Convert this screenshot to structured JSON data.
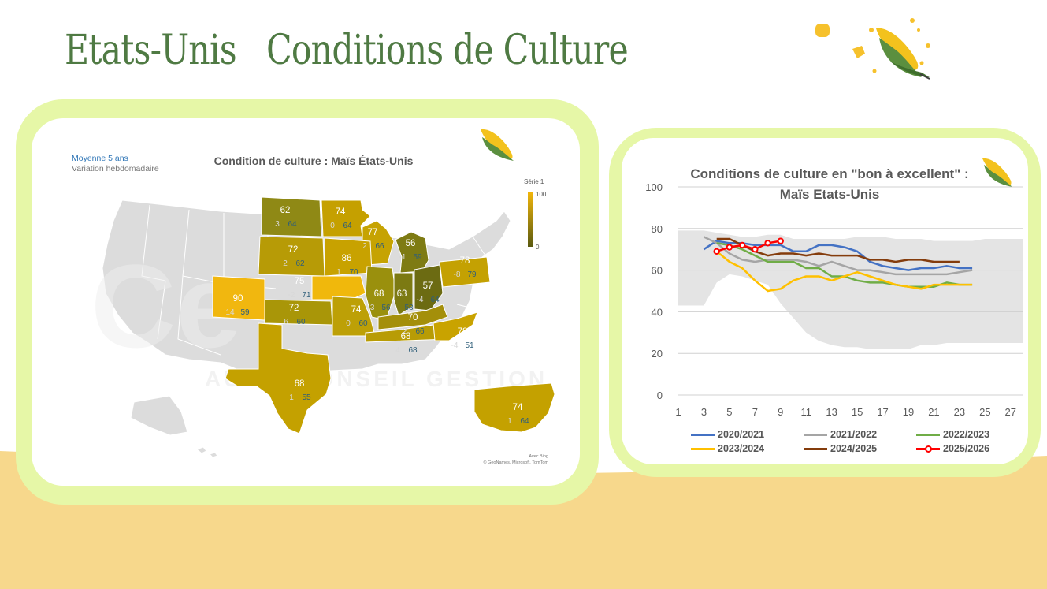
{
  "page": {
    "title": "Etats-Unis   Conditions de Culture"
  },
  "colors": {
    "green_title": "#4f7a43",
    "frame": "#e6f7a7",
    "sand": "#f7d88c",
    "map_fill": "#c5a100",
    "map_dark": "#6b6a12"
  },
  "map": {
    "title": "Condition de culture : Maïs États-Unis",
    "top_left_line1": "Moyenne 5 ans",
    "top_left_line2": "Variation hebdomadaire",
    "legend_title": "Série 1",
    "legend_max": "100",
    "legend_min": "0",
    "credit_line1": "Avec Bing",
    "credit_line2": "© GeoNames, Microsoft, TomTom",
    "watermark_row2": "AUDIT  CONSEIL  GESTION",
    "states": [
      {
        "name": "SD",
        "value": "62",
        "variation": "3",
        "avg": "64"
      },
      {
        "name": "MN",
        "value": "74",
        "variation": "0",
        "avg": "64"
      },
      {
        "name": "WI",
        "value": "77",
        "variation": "2",
        "avg": "66"
      },
      {
        "name": "MI",
        "value": "56",
        "variation": "-1",
        "avg": "59"
      },
      {
        "name": "NE",
        "value": "72",
        "variation": "2",
        "avg": "62"
      },
      {
        "name": "IA",
        "value": "86",
        "variation": "1",
        "avg": "70"
      },
      {
        "name": "NE2",
        "value": "75",
        "variation": "-2",
        "avg": "71"
      },
      {
        "name": "CO",
        "value": "90",
        "variation": "14",
        "avg": "59"
      },
      {
        "name": "KS",
        "value": "72",
        "variation": "6",
        "avg": "60"
      },
      {
        "name": "MO",
        "value": "74",
        "variation": "0",
        "avg": "60"
      },
      {
        "name": "IL",
        "value": "68",
        "variation": "-3",
        "avg": "56"
      },
      {
        "name": "IN",
        "value": "63",
        "variation": "1",
        "avg": "58"
      },
      {
        "name": "OH",
        "value": "57",
        "variation": "-4",
        "avg": "64"
      },
      {
        "name": "PA",
        "value": "78",
        "variation": "-8",
        "avg": "79"
      },
      {
        "name": "KY",
        "value": "70",
        "variation": "2",
        "avg": "66"
      },
      {
        "name": "TN",
        "value": "68",
        "variation": "4",
        "avg": "68"
      },
      {
        "name": "NC",
        "value": "78",
        "variation": "-4",
        "avg": "51"
      },
      {
        "name": "TX",
        "value": "68",
        "variation": "1",
        "avg": "55"
      },
      {
        "name": "US",
        "value": "74",
        "variation": "1",
        "avg": "64"
      }
    ]
  },
  "chart_data": {
    "type": "line",
    "title": "Conditions de culture en \"bon à excellent\" :",
    "subtitle": "Maïs Etats-Unis",
    "xlabel": "",
    "ylabel": "",
    "xlim": [
      1,
      28
    ],
    "ylim": [
      0,
      100
    ],
    "x_ticks": [
      1,
      3,
      5,
      7,
      9,
      11,
      13,
      15,
      17,
      19,
      21,
      23,
      25,
      27
    ],
    "y_ticks": [
      0,
      20,
      40,
      60,
      80,
      100
    ],
    "grid": true,
    "legend_position": "bottom",
    "range_band": {
      "weeks": [
        1,
        3,
        4,
        5,
        6,
        7,
        8,
        9,
        10,
        11,
        12,
        13,
        14,
        15,
        16,
        17,
        18,
        19,
        20,
        21,
        22,
        23,
        24,
        25,
        26,
        27,
        28
      ],
      "upper": [
        79,
        79,
        78,
        77,
        76,
        76,
        77,
        77,
        75,
        75,
        75,
        75,
        75,
        76,
        76,
        76,
        75,
        75,
        75,
        74,
        74,
        74,
        74,
        75,
        75,
        75,
        75
      ],
      "lower": [
        43,
        43,
        54,
        58,
        57,
        55,
        53,
        44,
        37,
        30,
        26,
        24,
        23,
        23,
        22,
        22,
        22,
        22,
        24,
        24,
        25,
        25,
        25,
        25,
        25,
        25,
        25
      ]
    },
    "series": [
      {
        "name": "2020/2021",
        "color": "#4472c4",
        "x": [
          3,
          4,
          5,
          6,
          7,
          8,
          9,
          10,
          11,
          12,
          13,
          14,
          15,
          16,
          17,
          18,
          19,
          20,
          21,
          22,
          23,
          24
        ],
        "y": [
          70,
          74,
          73,
          73,
          72,
          72,
          72,
          69,
          69,
          72,
          72,
          71,
          69,
          64,
          62,
          61,
          60,
          61,
          61,
          62,
          61,
          61
        ]
      },
      {
        "name": "2021/2022",
        "color": "#a5a5a5",
        "x": [
          3,
          4,
          5,
          6,
          7,
          8,
          9,
          10,
          11,
          12,
          13,
          14,
          15,
          16,
          17,
          18,
          19,
          20,
          21,
          22,
          23,
          24
        ],
        "y": [
          76,
          73,
          68,
          65,
          64,
          65,
          65,
          65,
          64,
          62,
          64,
          62,
          60,
          60,
          59,
          58,
          58,
          58,
          58,
          58,
          59,
          60
        ]
      },
      {
        "name": "2022/2023",
        "color": "#70ad47",
        "x": [
          4,
          5,
          6,
          7,
          8,
          9,
          10,
          11,
          12,
          13,
          14,
          15,
          16,
          17,
          18,
          19,
          20,
          21,
          22,
          23,
          24
        ],
        "y": [
          73,
          72,
          70,
          67,
          64,
          64,
          64,
          61,
          61,
          57,
          57,
          55,
          54,
          54,
          53,
          52,
          52,
          52,
          54,
          53,
          53
        ]
      },
      {
        "name": "2023/2024",
        "color": "#ffc000",
        "x": [
          4,
          5,
          6,
          7,
          8,
          9,
          10,
          11,
          12,
          13,
          14,
          15,
          16,
          17,
          18,
          19,
          20,
          21,
          22,
          23,
          24
        ],
        "y": [
          69,
          64,
          61,
          55,
          50,
          51,
          55,
          57,
          57,
          55,
          57,
          59,
          57,
          55,
          53,
          52,
          51,
          53,
          53,
          53,
          53
        ]
      },
      {
        "name": "2024/2025",
        "color": "#843c0c",
        "x": [
          4,
          5,
          6,
          7,
          8,
          9,
          10,
          11,
          12,
          13,
          14,
          15,
          16,
          17,
          18,
          19,
          20,
          21,
          22,
          23
        ],
        "y": [
          75,
          75,
          72,
          69,
          67,
          68,
          68,
          67,
          68,
          67,
          67,
          67,
          65,
          65,
          64,
          65,
          65,
          64,
          64,
          64
        ]
      },
      {
        "name": "2025/2026",
        "color": "#ff0000",
        "markers": true,
        "x": [
          4,
          5,
          6,
          7,
          8,
          9
        ],
        "y": [
          69,
          71,
          72,
          70,
          73,
          74
        ]
      }
    ]
  }
}
